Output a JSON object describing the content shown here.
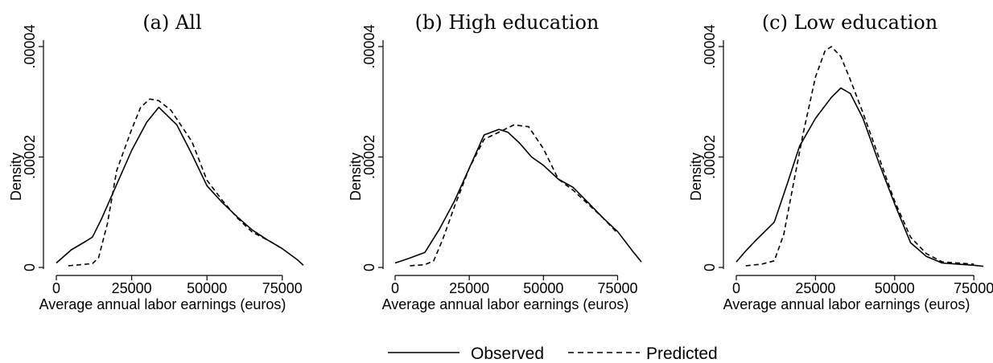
{
  "chart_data": [
    {
      "type": "line",
      "title": "(a) All",
      "xlabel": "Average annual labor earnings (euros)",
      "ylabel": "Density",
      "xlim": [
        0,
        82000
      ],
      "ylim": [
        0,
        4e-05
      ],
      "xticks": [
        0,
        25000,
        50000,
        75000
      ],
      "xtick_labels": [
        "0",
        "25000",
        "50000",
        "75000"
      ],
      "yticks": [
        0,
        2e-05,
        4e-05
      ],
      "ytick_labels": [
        "0",
        ".00002",
        ".00004"
      ],
      "series": [
        {
          "name": "Observed",
          "style": "solid",
          "x": [
            0,
            5000,
            10000,
            12000,
            15000,
            20000,
            25000,
            30000,
            34000,
            40000,
            45000,
            50000,
            55000,
            60000,
            65000,
            70000,
            75000,
            80000,
            82000
          ],
          "y": [
            8e-07,
            3.2e-06,
            4.8e-06,
            5.5e-06,
            8.8e-06,
            1.5e-05,
            2.12e-05,
            2.63e-05,
            2.9e-05,
            2.58e-05,
            2.05e-05,
            1.48e-05,
            1.18e-05,
            9.2e-06,
            6.8e-06,
            5e-06,
            3.4e-06,
            1.4e-06,
            4e-07
          ]
        },
        {
          "name": "Predicted",
          "style": "dashed",
          "x": [
            4000,
            8000,
            12000,
            14000,
            17000,
            20000,
            25000,
            28000,
            31000,
            34000,
            38000,
            45000,
            50000,
            55000,
            60000,
            65000,
            70000,
            75000
          ],
          "y": [
            3e-07,
            5e-07,
            7e-07,
            1.7e-06,
            8e-06,
            1.75e-05,
            2.5e-05,
            2.9e-05,
            3.05e-05,
            3.02e-05,
            2.85e-05,
            2.28e-05,
            1.58e-05,
            1.22e-05,
            9e-06,
            6.4e-06,
            5e-06,
            3.4e-06
          ]
        }
      ]
    },
    {
      "type": "line",
      "title": "(b) High education",
      "xlabel": "Average annual labor earnings (euros)",
      "ylabel": "Density",
      "xlim": [
        0,
        83000
      ],
      "ylim": [
        0,
        4e-05
      ],
      "xticks": [
        0,
        25000,
        50000,
        75000
      ],
      "xtick_labels": [
        "0",
        "25000",
        "50000",
        "75000"
      ],
      "yticks": [
        0,
        2e-05,
        4e-05
      ],
      "ytick_labels": [
        "0",
        ".00002",
        ".00004"
      ],
      "series": [
        {
          "name": "Observed",
          "style": "solid",
          "x": [
            0,
            5000,
            10000,
            15000,
            20000,
            25000,
            30000,
            35000,
            38000,
            42000,
            46000,
            50000,
            55000,
            60000,
            65000,
            70000,
            75000,
            80000,
            83000
          ],
          "y": [
            8e-07,
            1.7e-06,
            2.7e-06,
            7e-06,
            1.2e-05,
            1.8e-05,
            2.4e-05,
            2.5e-05,
            2.45e-05,
            2.25e-05,
            2e-05,
            1.85e-05,
            1.6e-05,
            1.45e-05,
            1.18e-05,
            9e-06,
            6.5e-06,
            3e-06,
            1e-06
          ]
        },
        {
          "name": "Predicted",
          "style": "dashed",
          "x": [
            5000,
            10000,
            13000,
            16000,
            20000,
            25000,
            30000,
            35000,
            40000,
            45000,
            50000,
            55000,
            60000,
            65000,
            70000,
            75000
          ],
          "y": [
            3e-07,
            5e-07,
            1.2e-06,
            5e-06,
            1.1e-05,
            1.8e-05,
            2.32e-05,
            2.45e-05,
            2.58e-05,
            2.55e-05,
            2.15e-05,
            1.6e-05,
            1.4e-05,
            1.15e-05,
            9e-06,
            6.2e-06
          ]
        }
      ]
    },
    {
      "type": "line",
      "title": "(c) Low education",
      "xlabel": "Average annual labor earnings (euros)",
      "ylabel": "Density",
      "xlim": [
        0,
        78000
      ],
      "ylim": [
        0,
        4e-05
      ],
      "xticks": [
        0,
        25000,
        50000,
        75000
      ],
      "xtick_labels": [
        "0",
        "25000",
        "50000",
        "75000"
      ],
      "yticks": [
        0,
        2e-05,
        4e-05
      ],
      "ytick_labels": [
        "0",
        ".00002",
        ".00004"
      ],
      "series": [
        {
          "name": "Observed",
          "style": "solid",
          "x": [
            0,
            3000,
            6000,
            12000,
            16000,
            20000,
            25000,
            30000,
            33000,
            36000,
            40000,
            45000,
            50000,
            55000,
            60000,
            65000,
            70000,
            75000,
            78000
          ],
          "y": [
            1e-06,
            3e-06,
            4.8e-06,
            8.2e-06,
            1.5e-05,
            2.2e-05,
            2.7e-05,
            3.08e-05,
            3.25e-05,
            3.15e-05,
            2.7e-05,
            1.9e-05,
            1.15e-05,
            4.5e-06,
            2e-06,
            8e-07,
            6e-07,
            4e-07,
            2e-07
          ]
        },
        {
          "name": "Predicted",
          "style": "dashed",
          "x": [
            3000,
            8000,
            12000,
            15000,
            18000,
            21000,
            25000,
            28000,
            30000,
            33000,
            36000,
            40000,
            45000,
            50000,
            55000,
            60000,
            65000,
            70000,
            75000
          ],
          "y": [
            3e-07,
            6e-07,
            1.2e-06,
            6e-06,
            1.5e-05,
            2.4e-05,
            3.45e-05,
            3.92e-05,
            4e-05,
            3.82e-05,
            3.4e-05,
            2.8e-05,
            2e-05,
            1.2e-05,
            5.5e-06,
            2.5e-06,
            1e-06,
            8e-07,
            6e-07
          ]
        }
      ]
    }
  ],
  "legend": {
    "observed_label": "Observed",
    "predicted_label": "Predicted"
  }
}
